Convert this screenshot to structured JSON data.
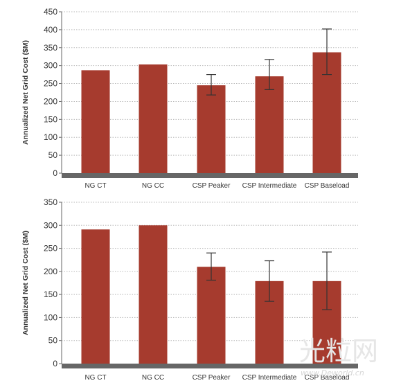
{
  "colors": {
    "bar": "#a63b2e",
    "axis": "#666666",
    "grid": "#b8b8b8",
    "error": "#333333"
  },
  "watermark": {
    "main": "光粒网",
    "sub": "www.Deworld.cn"
  },
  "chart_data": [
    {
      "type": "bar",
      "ylabel": "Annualized Net Grid Cost ($M)",
      "ylim": [
        0,
        450
      ],
      "yticks": [
        0,
        50,
        100,
        150,
        200,
        250,
        300,
        350,
        400,
        450
      ],
      "categories": [
        "NG CT",
        "NG CC",
        "CSP Peaker",
        "CSP Intermediate",
        "CSP Baseload"
      ],
      "values": [
        287,
        303,
        245,
        270,
        337
      ],
      "error_low": [
        null,
        null,
        218,
        233,
        275
      ],
      "error_high": [
        null,
        null,
        275,
        317,
        402
      ],
      "grid": "horizontal dotted"
    },
    {
      "type": "bar",
      "ylabel": "Annualized Net Grid Cost ($M)",
      "ylim": [
        0,
        350
      ],
      "yticks": [
        0,
        50,
        100,
        150,
        200,
        250,
        300,
        350
      ],
      "categories": [
        "NG CT",
        "NG CC",
        "CSP Peaker",
        "CSP Intermediate",
        "CSP Baseload"
      ],
      "values": [
        291,
        300,
        210,
        179,
        179
      ],
      "error_low": [
        null,
        null,
        181,
        135,
        117
      ],
      "error_high": [
        null,
        null,
        240,
        223,
        242
      ],
      "grid": "horizontal dotted"
    }
  ]
}
